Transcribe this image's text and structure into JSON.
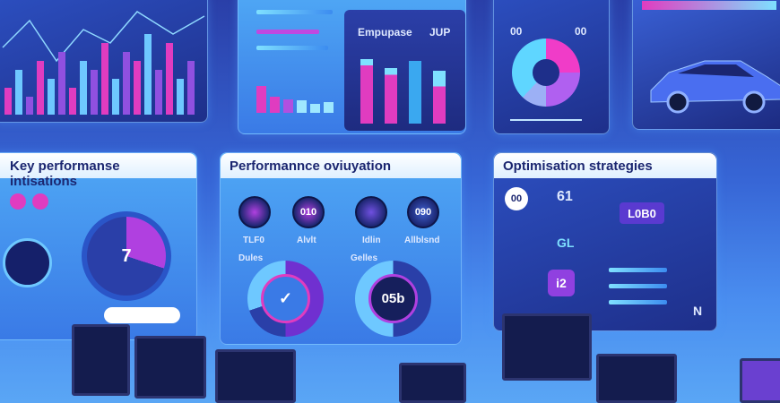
{
  "top_center": {
    "title": "Empupase",
    "badge": "JUP"
  },
  "top_right": {
    "left_value": "00",
    "right_value": "00"
  },
  "kpi_panel": {
    "title": "Key performanse intisations",
    "gauge_value": "7"
  },
  "evaluation_panel": {
    "title": "Performannce oviuyation",
    "dials": [
      "",
      "010",
      "",
      "090"
    ],
    "dial_labels": [
      "TLF0",
      "Alvlt",
      "Idlin",
      "Allblsnd"
    ],
    "gauge_label_left": "Dules",
    "gauge_label_right": "Gelles",
    "gauge_value": "05b"
  },
  "strategies_panel": {
    "title": "Optimisation strategies",
    "badges": {
      "circle": "00",
      "tile_top": "61",
      "tile_mid": "L0B0",
      "tile_bottom": "i2",
      "tile_small": "GL"
    },
    "side_mark": "N"
  },
  "colors": {
    "accent_pink": "#e236c8",
    "accent_cyan": "#5fd6ff",
    "accent_purple": "#8a3fe0",
    "panel_blue": "#2c4fc0"
  },
  "chart_data": {
    "type": "bar",
    "values": [
      3,
      5,
      2,
      6,
      4,
      7,
      3,
      6,
      5,
      8,
      4,
      7,
      6,
      9,
      5,
      8,
      4,
      6
    ],
    "title": "",
    "xlabel": "",
    "ylabel": ""
  }
}
